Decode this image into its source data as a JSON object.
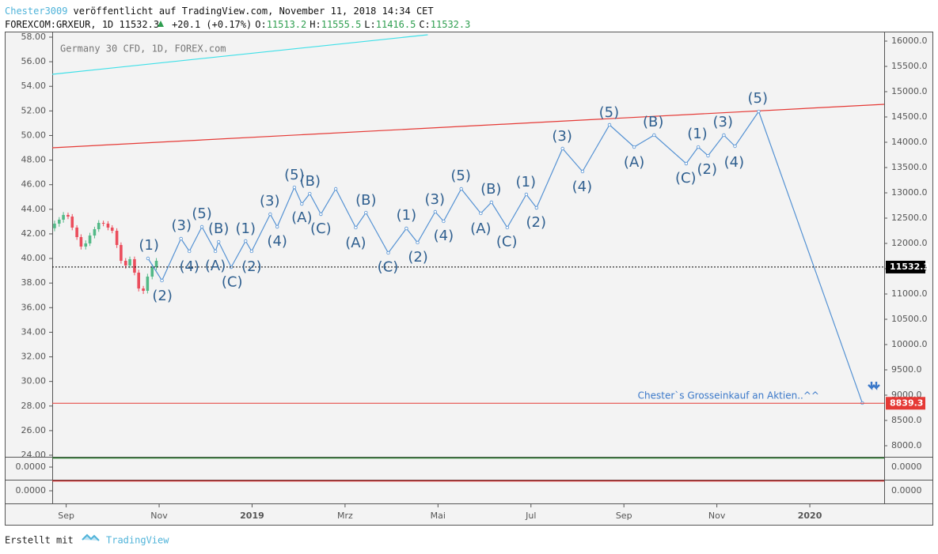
{
  "header": {
    "author": "Chester3009",
    "published": "veröffentlicht auf TradingView.com, November 11, 2018 14:34 CET",
    "symbol": "FOREXCOM:GRXEUR, 1D 11532.3",
    "change": "+20.1 (+0.17%)",
    "ohlc": [
      {
        "key": "O:",
        "value": "11513.2"
      },
      {
        "key": "H:",
        "value": "11555.5"
      },
      {
        "key": "L:",
        "value": "11416.5"
      },
      {
        "key": "C:",
        "value": "11532.3"
      }
    ]
  },
  "footer": {
    "created": "Erstellt mit",
    "brand": "TradingView"
  },
  "chart_data": {
    "type": "line",
    "watermark": "Germany 30 CFD, 1D, FOREX.com",
    "color": "#5592d3",
    "axis": "y2",
    "x": [
      1.76,
      2.06,
      2.47,
      2.65,
      2.92,
      3.21,
      3.28,
      3.55,
      3.86,
      3.99,
      4.39,
      4.54,
      4.91,
      5.07,
      5.24,
      5.48,
      5.8,
      6.23,
      6.45,
      6.93,
      7.32,
      7.56,
      7.94,
      8.12,
      8.5,
      8.92,
      9.15,
      9.49,
      9.9,
      10.12,
      10.68,
      11.11,
      11.69,
      12.22,
      12.65,
      13.34,
      13.6,
      13.81,
      14.15,
      14.39,
      14.9,
      17.13
    ],
    "values": [
      11703,
      11266,
      12094,
      11844,
      12328,
      11844,
      12031,
      11531,
      12047,
      11844,
      12578,
      12328,
      13109,
      12781,
      12984,
      12578,
      13078,
      12313,
      12609,
      11813,
      12297,
      12016,
      12625,
      12438,
      13078,
      12594,
      12813,
      12313,
      12969,
      12703,
      13875,
      13422,
      14344,
      13906,
      14141,
      13578,
      13906,
      13734,
      14141,
      13922,
      14609,
      8844
    ],
    "candles": {
      "up_color": "#53b987",
      "down_color": "#eb4d5c",
      "x": [
        -0.25,
        -0.15,
        -0.06,
        0.04,
        0.13,
        0.23,
        0.32,
        0.42,
        0.51,
        0.61,
        0.7,
        0.8,
        0.9,
        0.99,
        1.09,
        1.18,
        1.28,
        1.37,
        1.47,
        1.56,
        1.66,
        1.75,
        1.85,
        1.94
      ],
      "open": [
        12300,
        12391,
        12469,
        12563,
        12531,
        12313,
        12125,
        11938,
        12000,
        12156,
        12281,
        12406,
        12391,
        12313,
        12250,
        11969,
        11656,
        11563,
        11688,
        11422,
        11109,
        11063,
        11344,
        11531
      ],
      "high": [
        12450,
        12520,
        12620,
        12610,
        12580,
        12360,
        12180,
        12060,
        12210,
        12330,
        12460,
        12450,
        12440,
        12360,
        12300,
        12020,
        11710,
        11740,
        11740,
        11480,
        11160,
        11400,
        11590,
        11710
      ],
      "low": [
        12240,
        12330,
        12410,
        12480,
        12260,
        12070,
        11880,
        11880,
        11950,
        12100,
        12230,
        12340,
        12260,
        12200,
        11910,
        11600,
        11500,
        11510,
        11370,
        11050,
        11000,
        11010,
        11290,
        11470
      ],
      "close": [
        12391,
        12469,
        12563,
        12531,
        12313,
        12125,
        11938,
        12000,
        12156,
        12281,
        12406,
        12391,
        12313,
        12250,
        11969,
        11656,
        11563,
        11688,
        11422,
        11109,
        11063,
        11344,
        11531,
        11656
      ]
    },
    "trendlines": [
      {
        "color": "#3ee0e8",
        "x": [
          -0.3,
          7.78
        ],
        "y2": [
          15344,
          16125
        ]
      },
      {
        "color": "#e53935",
        "x": [
          -0.3,
          17.6
        ],
        "y2": [
          13891,
          14750
        ]
      }
    ],
    "price_lines": [
      {
        "value": 11532.3,
        "color": "#000000",
        "dotted": true
      },
      {
        "value": 8839.3,
        "color": "#e53935",
        "dotted": false
      }
    ],
    "wave_labels": [
      {
        "text": "(1)",
        "x": 1.78,
        "y": 11950
      },
      {
        "text": "(2)",
        "x": 2.07,
        "y": 10950
      },
      {
        "text": "(3)",
        "x": 2.48,
        "y": 12340
      },
      {
        "text": "(4)",
        "x": 2.65,
        "y": 11530
      },
      {
        "text": "(5)",
        "x": 2.92,
        "y": 12580
      },
      {
        "text": "(B)",
        "x": 3.28,
        "y": 12280
      },
      {
        "text": "(A)",
        "x": 3.21,
        "y": 11550
      },
      {
        "text": "(C)",
        "x": 3.57,
        "y": 11230
      },
      {
        "text": "(1)",
        "x": 3.86,
        "y": 12280
      },
      {
        "text": "(2)",
        "x": 3.99,
        "y": 11530
      },
      {
        "text": "(3)",
        "x": 4.38,
        "y": 12830
      },
      {
        "text": "(4)",
        "x": 4.54,
        "y": 12030
      },
      {
        "text": "(5)",
        "x": 4.91,
        "y": 13340
      },
      {
        "text": "(B)",
        "x": 5.25,
        "y": 13220
      },
      {
        "text": "(A)",
        "x": 5.07,
        "y": 12500
      },
      {
        "text": "(C)",
        "x": 5.48,
        "y": 12280
      },
      {
        "text": "(B)",
        "x": 6.45,
        "y": 12840
      },
      {
        "text": "(A)",
        "x": 6.23,
        "y": 12000
      },
      {
        "text": "(C)",
        "x": 6.92,
        "y": 11520
      },
      {
        "text": "(1)",
        "x": 7.32,
        "y": 12550
      },
      {
        "text": "(2)",
        "x": 7.57,
        "y": 11720
      },
      {
        "text": "(3)",
        "x": 7.93,
        "y": 12860
      },
      {
        "text": "(4)",
        "x": 8.12,
        "y": 12140
      },
      {
        "text": "(5)",
        "x": 8.49,
        "y": 13330
      },
      {
        "text": "(B)",
        "x": 9.14,
        "y": 13060
      },
      {
        "text": "(A)",
        "x": 8.92,
        "y": 12280
      },
      {
        "text": "(C)",
        "x": 9.48,
        "y": 12020
      },
      {
        "text": "(1)",
        "x": 9.89,
        "y": 13200
      },
      {
        "text": "(2)",
        "x": 10.11,
        "y": 12410
      },
      {
        "text": "(3)",
        "x": 10.67,
        "y": 14110
      },
      {
        "text": "(4)",
        "x": 11.1,
        "y": 13110
      },
      {
        "text": "(5)",
        "x": 11.68,
        "y": 14580
      },
      {
        "text": "(B)",
        "x": 12.63,
        "y": 14390
      },
      {
        "text": "(A)",
        "x": 12.22,
        "y": 13590
      },
      {
        "text": "(C)",
        "x": 13.33,
        "y": 13280
      },
      {
        "text": "(1)",
        "x": 13.58,
        "y": 14160
      },
      {
        "text": "(2)",
        "x": 13.79,
        "y": 13450
      },
      {
        "text": "(3)",
        "x": 14.13,
        "y": 14390
      },
      {
        "text": "(4)",
        "x": 14.37,
        "y": 13590
      },
      {
        "text": "(5)",
        "x": 14.88,
        "y": 14860
      }
    ],
    "annotation": {
      "text": "Chester`s Grosseinkauf  an Aktien..^^",
      "x": 14.25,
      "y": 8984
    },
    "xlim": [
      -0.3,
      17.6
    ],
    "xticks": [
      {
        "value": 0,
        "label": "Sep"
      },
      {
        "value": 2,
        "label": "Nov"
      },
      {
        "value": 4,
        "label": "2019"
      },
      {
        "value": 6,
        "label": "Mrz"
      },
      {
        "value": 8,
        "label": "Mai"
      },
      {
        "value": 10,
        "label": "Jul"
      },
      {
        "value": 12,
        "label": "Sep"
      },
      {
        "value": 14,
        "label": "Nov"
      },
      {
        "value": 16,
        "label": "2020"
      }
    ],
    "ylim": [
      24,
      58.45
    ],
    "yticks": [
      {
        "value": 24,
        "label": "24.00"
      },
      {
        "value": 26,
        "label": "26.00"
      },
      {
        "value": 28,
        "label": "28.00"
      },
      {
        "value": 30,
        "label": "30.00"
      },
      {
        "value": 32,
        "label": "32.00"
      },
      {
        "value": 34,
        "label": "34.00"
      },
      {
        "value": 36,
        "label": "36.00"
      },
      {
        "value": 38,
        "label": "38.00"
      },
      {
        "value": 40,
        "label": "40.00"
      },
      {
        "value": 42,
        "label": "42.00"
      },
      {
        "value": 44,
        "label": "44.00"
      },
      {
        "value": 46,
        "label": "46.00"
      },
      {
        "value": 48,
        "label": "48.00"
      },
      {
        "value": 50,
        "label": "50.00"
      },
      {
        "value": 52,
        "label": "52.00"
      },
      {
        "value": 54,
        "label": "54.00"
      },
      {
        "value": 56,
        "label": "56.00"
      },
      {
        "value": 58,
        "label": "58.00"
      }
    ],
    "y2lim": [
      7812.5,
      16187.5
    ],
    "y2ticks": [
      {
        "value": 8000,
        "label": "8000.0"
      },
      {
        "value": 8500,
        "label": "8500.0"
      },
      {
        "value": 9000,
        "label": "9000.0"
      },
      {
        "value": 9500,
        "label": "9500.0"
      },
      {
        "value": 10000,
        "label": "10000.0"
      },
      {
        "value": 10500,
        "label": "10500.0"
      },
      {
        "value": 11000,
        "label": "11000.0"
      },
      {
        "value": 11500,
        "label": "11500.0"
      },
      {
        "value": 12000,
        "label": "12000.0"
      },
      {
        "value": 12500,
        "label": "12500.0"
      },
      {
        "value": 13000,
        "label": "13000.0"
      },
      {
        "value": 13500,
        "label": "13500.0"
      },
      {
        "value": 14000,
        "label": "14000.0"
      },
      {
        "value": 14500,
        "label": "14500.0"
      },
      {
        "value": 15000,
        "label": "15000.0"
      },
      {
        "value": 15500,
        "label": "15500.0"
      },
      {
        "value": 16000,
        "label": "16000.0"
      }
    ],
    "indicator_panels": [
      {
        "color": "#2e7d32",
        "tick": {
          "value": 0,
          "label": "0.0000"
        }
      },
      {
        "color": "#c62828",
        "tick": {
          "value": 0,
          "label": "0.0000"
        }
      }
    ]
  }
}
